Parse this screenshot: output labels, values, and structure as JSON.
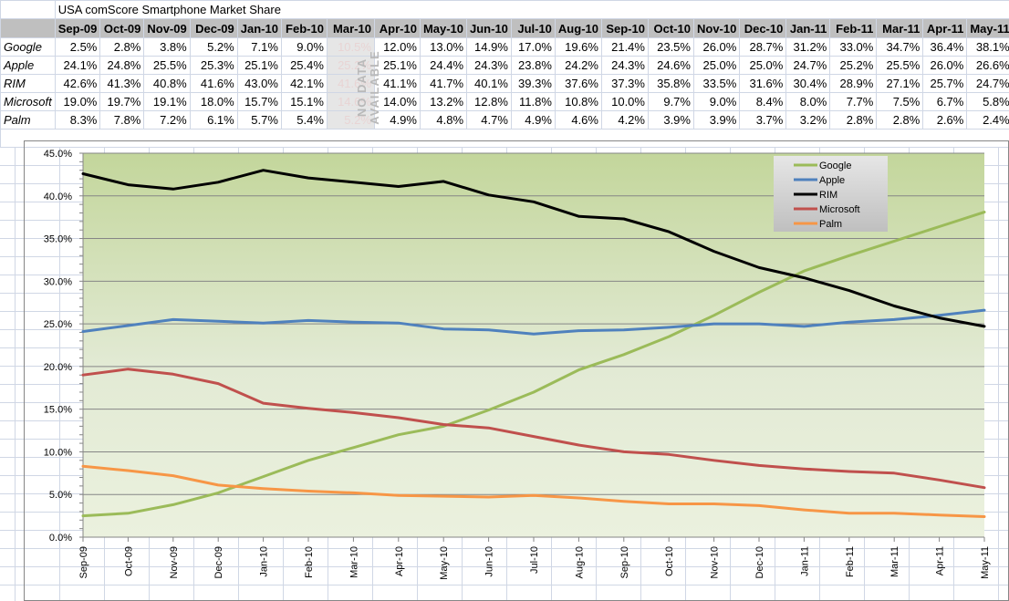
{
  "sheet": {
    "title": "USA comScore Smartphone Market Share",
    "months": [
      "Sep-09",
      "Oct-09",
      "Nov-09",
      "Dec-09",
      "Jan-10",
      "Feb-10",
      "Mar-10",
      "Apr-10",
      "May-10",
      "Jun-10",
      "Jul-10",
      "Aug-10",
      "Sep-10",
      "Oct-10",
      "Nov-10",
      "Dec-10",
      "Jan-11",
      "Feb-11",
      "Mar-11",
      "Apr-11",
      "May-11"
    ],
    "no_data_label": "NO DATA AVAILABLE",
    "no_data_month": "Mar-10",
    "rows": [
      {
        "name": "Google",
        "cells": [
          "2.5%",
          "2.8%",
          "3.8%",
          "5.2%",
          "7.1%",
          "9.0%",
          "10.5%",
          "12.0%",
          "13.0%",
          "14.9%",
          "17.0%",
          "19.6%",
          "21.4%",
          "23.5%",
          "26.0%",
          "28.7%",
          "31.2%",
          "33.0%",
          "34.7%",
          "36.4%",
          "38.1%"
        ]
      },
      {
        "name": "Apple",
        "cells": [
          "24.1%",
          "24.8%",
          "25.5%",
          "25.3%",
          "25.1%",
          "25.4%",
          "25.2%",
          "25.1%",
          "24.4%",
          "24.3%",
          "23.8%",
          "24.2%",
          "24.3%",
          "24.6%",
          "25.0%",
          "25.0%",
          "24.7%",
          "25.2%",
          "25.5%",
          "26.0%",
          "26.6%"
        ]
      },
      {
        "name": "RIM",
        "cells": [
          "42.6%",
          "41.3%",
          "40.8%",
          "41.6%",
          "43.0%",
          "42.1%",
          "41.6%",
          "41.1%",
          "41.7%",
          "40.1%",
          "39.3%",
          "37.6%",
          "37.3%",
          "35.8%",
          "33.5%",
          "31.6%",
          "30.4%",
          "28.9%",
          "27.1%",
          "25.7%",
          "24.7%"
        ]
      },
      {
        "name": "Microsoft",
        "cells": [
          "19.0%",
          "19.7%",
          "19.1%",
          "18.0%",
          "15.7%",
          "15.1%",
          "14.6%",
          "14.0%",
          "13.2%",
          "12.8%",
          "11.8%",
          "10.8%",
          "10.0%",
          "9.7%",
          "9.0%",
          "8.4%",
          "8.0%",
          "7.7%",
          "7.5%",
          "6.7%",
          "5.8%"
        ]
      },
      {
        "name": "Palm",
        "cells": [
          "8.3%",
          "7.8%",
          "7.2%",
          "6.1%",
          "5.7%",
          "5.4%",
          "5.2%",
          "4.9%",
          "4.8%",
          "4.7%",
          "4.9%",
          "4.6%",
          "4.2%",
          "3.9%",
          "3.9%",
          "3.7%",
          "3.2%",
          "2.8%",
          "2.8%",
          "2.6%",
          "2.4%"
        ]
      }
    ]
  },
  "chart_data": {
    "type": "line",
    "title": "",
    "xlabel": "",
    "ylabel": "",
    "x": [
      "Sep-09",
      "Oct-09",
      "Nov-09",
      "Dec-09",
      "Jan-10",
      "Feb-10",
      "Mar-10",
      "Apr-10",
      "May-10",
      "Jun-10",
      "Jul-10",
      "Aug-10",
      "Sep-10",
      "Oct-10",
      "Nov-10",
      "Dec-10",
      "Jan-11",
      "Feb-11",
      "Mar-11",
      "Apr-11",
      "May-11"
    ],
    "ylim": [
      0,
      45
    ],
    "yticks": [
      "0.0%",
      "5.0%",
      "10.0%",
      "15.0%",
      "20.0%",
      "25.0%",
      "30.0%",
      "35.0%",
      "40.0%",
      "45.0%"
    ],
    "grid": true,
    "legend_position": "top-right",
    "series": [
      {
        "name": "Google",
        "color": "#9bbb59",
        "values": [
          2.5,
          2.8,
          3.8,
          5.2,
          7.1,
          9.0,
          10.5,
          12.0,
          13.0,
          14.9,
          17.0,
          19.6,
          21.4,
          23.5,
          26.0,
          28.7,
          31.2,
          33.0,
          34.7,
          36.4,
          38.1
        ]
      },
      {
        "name": "Apple",
        "color": "#4f81bd",
        "values": [
          24.1,
          24.8,
          25.5,
          25.3,
          25.1,
          25.4,
          25.2,
          25.1,
          24.4,
          24.3,
          23.8,
          24.2,
          24.3,
          24.6,
          25.0,
          25.0,
          24.7,
          25.2,
          25.5,
          26.0,
          26.6
        ]
      },
      {
        "name": "RIM",
        "color": "#000000",
        "values": [
          42.6,
          41.3,
          40.8,
          41.6,
          43.0,
          42.1,
          41.6,
          41.1,
          41.7,
          40.1,
          39.3,
          37.6,
          37.3,
          35.8,
          33.5,
          31.6,
          30.4,
          28.9,
          27.1,
          25.7,
          24.7
        ]
      },
      {
        "name": "Microsoft",
        "color": "#c0504d",
        "values": [
          19.0,
          19.7,
          19.1,
          18.0,
          15.7,
          15.1,
          14.6,
          14.0,
          13.2,
          12.8,
          11.8,
          10.8,
          10.0,
          9.7,
          9.0,
          8.4,
          8.0,
          7.7,
          7.5,
          6.7,
          5.8
        ]
      },
      {
        "name": "Palm",
        "color": "#f79646",
        "values": [
          8.3,
          7.8,
          7.2,
          6.1,
          5.7,
          5.4,
          5.2,
          4.9,
          4.8,
          4.7,
          4.9,
          4.6,
          4.2,
          3.9,
          3.9,
          3.7,
          3.2,
          2.8,
          2.8,
          2.6,
          2.4
        ]
      }
    ]
  }
}
